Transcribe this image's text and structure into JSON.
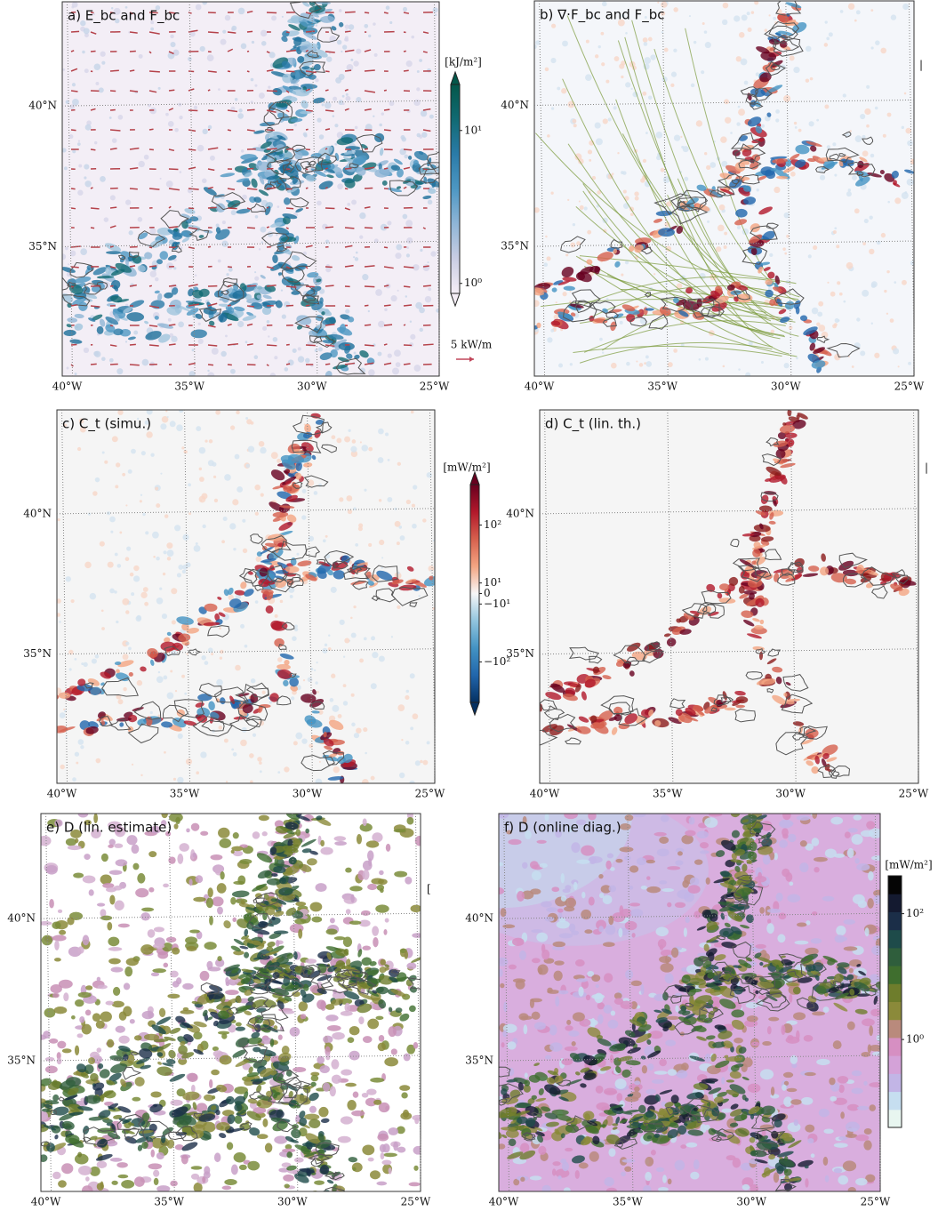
{
  "panels": [
    {
      "title": "a) E_bc and F_bc",
      "xlim": [
        -40.2,
        -24.8
      ],
      "ylim": [
        30.4,
        43.7
      ],
      "lon_ticks": [
        {
          "value": -40,
          "label": "40°W"
        },
        {
          "value": -35,
          "label": "35°W"
        },
        {
          "value": -30,
          "label": "30°W"
        },
        {
          "value": -25,
          "label": "25°W"
        }
      ],
      "lat_ticks": [
        {
          "value": 40,
          "label": "40°N"
        },
        {
          "value": 35,
          "label": "35°N"
        }
      ],
      "colorbar": {
        "label": "[kJ/m²]",
        "scale": "log",
        "lim": [
          0.86,
          20
        ],
        "ticks": [
          {
            "value": 1,
            "label": "10⁰"
          },
          {
            "value": 10,
            "label": "10¹"
          }
        ],
        "colors": [
          "#f5eef6",
          "#c9cde3",
          "#8fb5d6",
          "#4d97c3",
          "#2a7ba8",
          "#116a73",
          "#03574a"
        ]
      },
      "reference_arrow": "5 kW/m"
    },
    {
      "title": "b) ∇·F_bc and F_bc",
      "xlim": [
        -40.2,
        -24.8
      ],
      "ylim": [
        30.4,
        43.7
      ],
      "lon_ticks": [
        {
          "value": -40,
          "label": "40°W"
        },
        {
          "value": -35,
          "label": "35°W"
        },
        {
          "value": -30,
          "label": "30°W"
        },
        {
          "value": -25,
          "label": "25°W"
        }
      ],
      "lat_ticks": [
        {
          "value": 40,
          "label": "40°N"
        },
        {
          "value": 35,
          "label": "35°N"
        }
      ],
      "edge_mark": "|"
    },
    {
      "title": "c) C_t (simu.)",
      "xlim": [
        -40.2,
        -24.8
      ],
      "ylim": [
        30.4,
        43.7
      ],
      "lon_ticks": [
        {
          "value": -40,
          "label": "40°W"
        },
        {
          "value": -35,
          "label": "35°W"
        },
        {
          "value": -30,
          "label": "30°W"
        },
        {
          "value": -25,
          "label": "25°W"
        }
      ],
      "lat_ticks": [
        {
          "value": 40,
          "label": "40°N"
        },
        {
          "value": 35,
          "label": "35°N"
        }
      ],
      "colorbar": {
        "label": "[mW/m²]",
        "scale": "symlog",
        "linthresh": 10,
        "lim": [
          -500,
          500
        ],
        "ticks": [
          {
            "value": 100,
            "label": "10²"
          },
          {
            "value": 10,
            "label": "10¹"
          },
          0,
          {
            "value": -10,
            "label": "−10¹"
          },
          {
            "value": -100,
            "label": "−10²"
          }
        ],
        "colors": [
          "#053061",
          "#2166ac",
          "#4393c3",
          "#92c5de",
          "#f7f7f7",
          "#f4a582",
          "#d6604d",
          "#b2182b",
          "#67001f"
        ]
      }
    },
    {
      "title": "d) C_t (lin. th.)",
      "xlim": [
        -40.2,
        -24.8
      ],
      "ylim": [
        30.4,
        43.7
      ],
      "lon_ticks": [
        {
          "value": -40,
          "label": "40°W"
        },
        {
          "value": -35,
          "label": "35°W"
        },
        {
          "value": -30,
          "label": "30°W"
        },
        {
          "value": -25,
          "label": "25°W"
        }
      ],
      "lat_ticks": [
        {
          "value": 40,
          "label": "40°N"
        },
        {
          "value": 35,
          "label": "35°N"
        }
      ],
      "edge_mark": "|"
    },
    {
      "title": "e) D (lin. estimate)",
      "xlim": [
        -40.2,
        -24.8
      ],
      "ylim": [
        30.4,
        43.7
      ],
      "lon_ticks": [
        {
          "value": -40,
          "label": "40°W"
        },
        {
          "value": -35,
          "label": "35°W"
        },
        {
          "value": -30,
          "label": "30°W"
        },
        {
          "value": -25,
          "label": "25°W"
        }
      ],
      "lat_ticks": [
        {
          "value": 40,
          "label": "40°N"
        },
        {
          "value": 35,
          "label": "35°N"
        }
      ],
      "edge_mark": "["
    },
    {
      "title": "f) D (online diag.)",
      "xlim": [
        -40.2,
        -24.8
      ],
      "ylim": [
        30.4,
        43.7
      ],
      "lon_ticks": [
        {
          "value": -40,
          "label": "40°W"
        },
        {
          "value": -35,
          "label": "35°W"
        },
        {
          "value": -30,
          "label": "30°W"
        },
        {
          "value": -25,
          "label": "25°W"
        }
      ],
      "lat_ticks": [
        {
          "value": 40,
          "label": "40°N"
        },
        {
          "value": 35,
          "label": "35°N"
        }
      ],
      "colorbar": {
        "label": "[mW/m²]",
        "scale": "log",
        "lim": [
          0.04,
          400
        ],
        "ticks": [
          {
            "value": 100,
            "label": "10²"
          },
          {
            "value": 1,
            "label": "10⁰"
          }
        ],
        "colors": [
          "#e8f6f0",
          "#c6def0",
          "#c2b5e6",
          "#d4a2d8",
          "#d68fc2",
          "#b98a7c",
          "#8b8a3a",
          "#6e7d2c",
          "#3f6e2e",
          "#2f5e3c",
          "#1e4b4a",
          "#1b2e48",
          "#141a30",
          "#050505"
        ]
      }
    }
  ]
}
